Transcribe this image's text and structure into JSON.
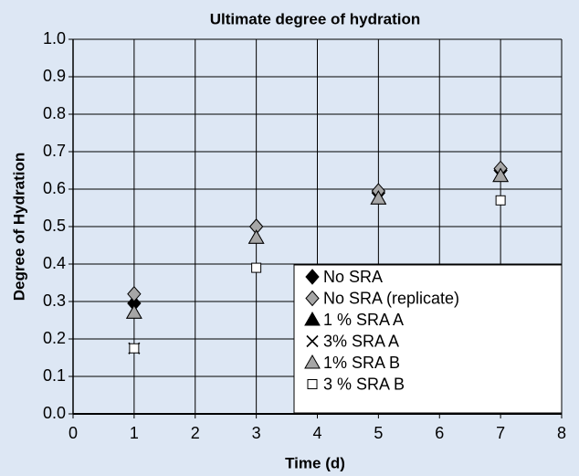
{
  "chart_data": {
    "type": "scatter",
    "title": "Ultimate degree of hydration",
    "x_label": "Time (d)",
    "y_label": "Degree of Hydration",
    "xlim": [
      0,
      8
    ],
    "ylim": [
      0,
      1
    ],
    "xticks": [
      0,
      1,
      2,
      3,
      4,
      5,
      6,
      7,
      8
    ],
    "yticks": [
      {
        "value": 0,
        "label": "0.0"
      },
      0.1,
      0.2,
      0.3,
      0.4,
      0.5,
      0.6,
      0.7,
      0.8,
      0.9,
      {
        "value": 1,
        "label": "1.0"
      }
    ],
    "grid": true,
    "legend": "lower right",
    "series": [
      {
        "name": "No SRA",
        "marker": "diamond",
        "color": "#000000",
        "x": [
          1,
          3,
          5,
          7
        ],
        "y": [
          0.295,
          0.5,
          0.59,
          0.65
        ]
      },
      {
        "name": "No SRA (replicate)",
        "marker": "diamond",
        "color": "#a6a6a6",
        "x": [
          1,
          3,
          5,
          7
        ],
        "y": [
          0.32,
          0.5,
          0.595,
          0.655
        ]
      },
      {
        "name": "1 % SRA A",
        "marker": "triangle",
        "color": "#000000",
        "x": [
          1,
          3,
          5,
          7
        ],
        "y": [
          0.27,
          0.47,
          0.575,
          0.635
        ]
      },
      {
        "name": "3% SRA A",
        "marker": "x",
        "color": "#000000",
        "x": [
          1
        ],
        "y": [
          0.175
        ]
      },
      {
        "name": "1% SRA B",
        "marker": "triangle",
        "color": "#a6a6a6",
        "x": [
          1,
          3,
          5,
          7
        ],
        "y": [
          0.27,
          0.47,
          0.575,
          0.635
        ]
      },
      {
        "name": "3 % SRA B",
        "marker": "square",
        "color": "#ffffff",
        "x": [
          1,
          3,
          7
        ],
        "y": [
          0.175,
          0.39,
          0.57
        ]
      }
    ]
  }
}
